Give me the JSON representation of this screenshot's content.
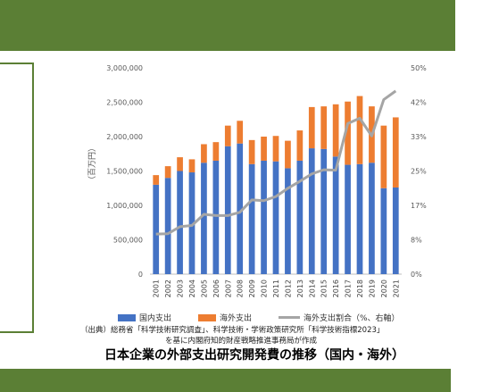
{
  "chart_data": {
    "type": "bar",
    "title": "日本企業の外部支出研究開発費の推移（国内・海外）",
    "ylabel": "（百万円）",
    "ylim": [
      0,
      3000000
    ],
    "y2lim": [
      0,
      0.5
    ],
    "yticks": [
      "3,000,000",
      "2,500,000",
      "2,000,000",
      "1,500,000",
      "1,000,000",
      "500,000",
      "0"
    ],
    "y2ticks": [
      "50%",
      "42%",
      "33%",
      "25%",
      "17%",
      "8%",
      "0%"
    ],
    "categories": [
      "2001",
      "2002",
      "2003",
      "2004",
      "2005",
      "2006",
      "2007",
      "2008",
      "2009",
      "2010",
      "2011",
      "2012",
      "2013",
      "2014",
      "2015",
      "2016",
      "2017",
      "2018",
      "2019",
      "2020",
      "2021"
    ],
    "series": [
      {
        "name": "国内支出",
        "kind": "stacked-bar",
        "color": "#4472c4",
        "values": [
          1300000,
          1400000,
          1500000,
          1480000,
          1620000,
          1650000,
          1860000,
          1900000,
          1600000,
          1650000,
          1640000,
          1540000,
          1650000,
          1830000,
          1820000,
          1710000,
          1590000,
          1600000,
          1620000,
          1250000,
          1260000
        ]
      },
      {
        "name": "海外支出",
        "kind": "stacked-bar",
        "color": "#ed7d31",
        "values": [
          140000,
          170000,
          200000,
          190000,
          270000,
          270000,
          300000,
          330000,
          350000,
          350000,
          370000,
          400000,
          440000,
          600000,
          620000,
          760000,
          920000,
          990000,
          820000,
          910000,
          1020000
        ]
      },
      {
        "name": "海外支出割合（%、右軸）",
        "kind": "line",
        "axis": "right",
        "color": "#a5a5a5",
        "values": [
          0.097,
          0.098,
          0.115,
          0.118,
          0.145,
          0.142,
          0.142,
          0.15,
          0.18,
          0.178,
          0.188,
          0.208,
          0.225,
          0.243,
          0.253,
          0.252,
          0.365,
          0.378,
          0.335,
          0.423,
          0.444
        ]
      }
    ],
    "grid": false,
    "legend_position": "bottom"
  },
  "legend": {
    "domestic": "国内支出",
    "overseas": "海外支出",
    "ratio": "海外支出割合（%、右軸）"
  },
  "source_line1": "（出典）総務省「科学技術研究調査」、科学技術・学術政策研究所「科学技術指標2023」",
  "source_line2": "を基に内閣府知的財産戦略推進事務局が作成",
  "title": "日本企業の外部支出研究開発費の推移（国内・海外）",
  "colors": {
    "band": "#5b7f35",
    "domestic": "#4472c4",
    "overseas": "#ed7d31",
    "ratio": "#a5a5a5"
  }
}
